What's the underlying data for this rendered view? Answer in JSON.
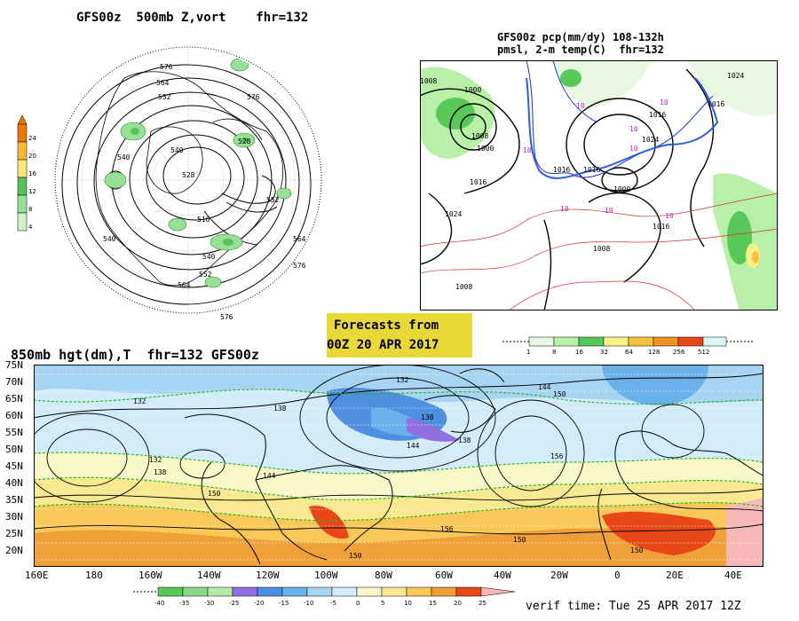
{
  "panels": {
    "top_left": {
      "title": "GFS00z  500mb Z,vort    fhr=132",
      "contour_labels": [
        "576",
        "564",
        "576",
        "552",
        "540",
        "528",
        "516",
        "540",
        "540",
        "552",
        "564",
        "576",
        "564",
        "576",
        "528",
        "552",
        "540"
      ],
      "colorbar": {
        "labels": [
          "24",
          "20",
          "16",
          "12",
          "8",
          "4"
        ],
        "colors": [
          "#f07800",
          "#f8b838",
          "#f8e878",
          "#58c058",
          "#98e098",
          "#d0f0c8"
        ]
      }
    },
    "top_right": {
      "title_line1": "GFS00z pcp(mm/dy) 108-132h",
      "title_line2": "pmsl, 2-m temp(C)  fhr=132",
      "contour_labels": [
        "1008",
        "1000",
        "1000",
        "1016",
        "1008",
        "1024",
        "1016",
        "1016",
        "1008",
        "1000",
        "1016",
        "1024",
        "1016",
        "1024",
        "1008",
        "1016"
      ],
      "temp_labels": [
        "10",
        "10",
        "10",
        "10",
        "10",
        "10",
        "10",
        "10"
      ],
      "colorbar": {
        "labels": [
          "1",
          "8",
          "16",
          "32",
          "64",
          "128",
          "256",
          "512"
        ],
        "colors": [
          "#e8f8e0",
          "#b8f0a8",
          "#58c858",
          "#f8f088",
          "#f8c040",
          "#f09020",
          "#e84818",
          "#d8f8f8"
        ]
      }
    },
    "bottom": {
      "title": "850mb hgt(dm),T  fhr=132 GFS00z",
      "lat_labels": [
        "75N",
        "70N",
        "65N",
        "60N",
        "55N",
        "50N",
        "45N",
        "40N",
        "35N",
        "30N",
        "25N",
        "20N"
      ],
      "lon_labels": [
        "160E",
        "180",
        "160W",
        "140W",
        "120W",
        "100W",
        "80W",
        "60W",
        "40W",
        "20W",
        "0",
        "20E",
        "40E"
      ],
      "height_labels": [
        "132",
        "132",
        "138",
        "144",
        "138",
        "150",
        "156",
        "150",
        "144",
        "138",
        "132",
        "150",
        "156",
        "150",
        "138",
        "144",
        "150"
      ],
      "colorbar": {
        "labels": [
          "-40",
          "-35",
          "-30",
          "-25",
          "-20",
          "-15",
          "-10",
          "-5",
          "0",
          "5",
          "10",
          "15",
          "20",
          "25"
        ],
        "colors": [
          "#58c858",
          "#88d888",
          "#b8e8a8",
          "#9070e0",
          "#4f8fe0",
          "#6ab0ea",
          "#a6d4f2",
          "#d2ecfa",
          "#f8f8c8",
          "#f8e890",
          "#f8c858",
          "#f0a038",
          "#e84818",
          "#f8b8b8"
        ]
      }
    }
  },
  "banner": {
    "line1": "Forecasts from",
    "line2": "00Z 20 APR 2017"
  },
  "verif": "verif time: Tue 25 APR 2017 12Z"
}
